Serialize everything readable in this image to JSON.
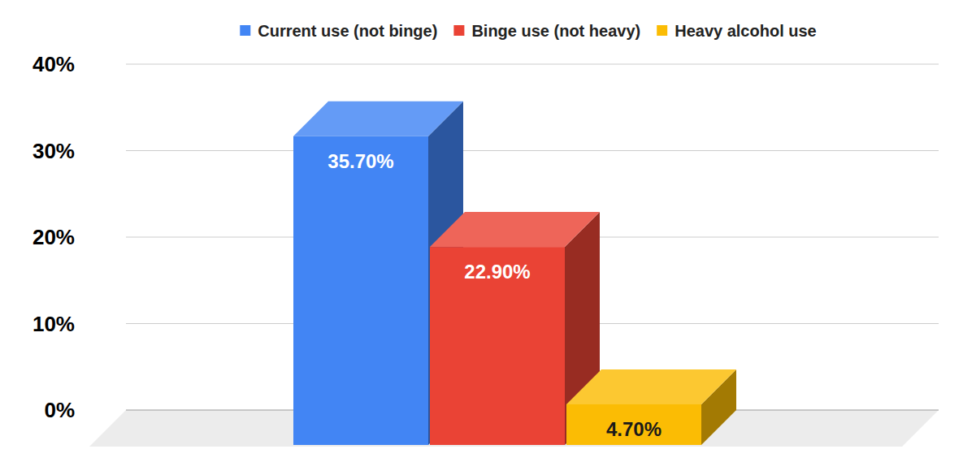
{
  "chart_data": {
    "type": "bar",
    "categories": [
      null
    ],
    "series": [
      {
        "name": "Current use (not binge)",
        "color": "#4285f4",
        "values": [
          35.7
        ],
        "value_labels": [
          "35.70%"
        ]
      },
      {
        "name": "Binge use (not heavy)",
        "color": "#ea4335",
        "values": [
          22.9
        ],
        "value_labels": [
          "22.90%"
        ]
      },
      {
        "name": "Heavy alcohol use",
        "color": "#fbbc04",
        "values": [
          4.7
        ],
        "value_labels": [
          "4.70%"
        ]
      }
    ],
    "ylim": [
      0,
      40
    ],
    "yticks": [
      {
        "value": 0,
        "label": "0%"
      },
      {
        "value": 10,
        "label": "10%"
      },
      {
        "value": 20,
        "label": "20%"
      },
      {
        "value": 30,
        "label": "30%"
      },
      {
        "value": 40,
        "label": "40%"
      }
    ],
    "grid": true,
    "legend": "top",
    "data_labels": true
  }
}
